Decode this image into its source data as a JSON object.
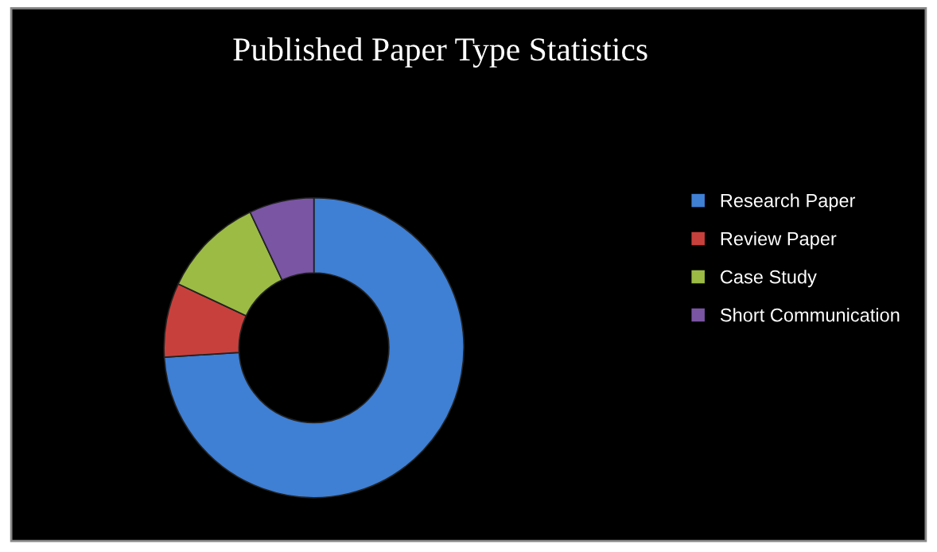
{
  "chart_data": {
    "type": "donut",
    "title": "Published Paper Type Statistics",
    "categories": [
      "Research Paper",
      "Review Paper",
      "Case Study",
      "Short Communication"
    ],
    "values": [
      74,
      8,
      11,
      7
    ],
    "colors": [
      "#3f7fd4",
      "#c8403c",
      "#9bbb45",
      "#7a55a3"
    ],
    "legend": "right"
  }
}
